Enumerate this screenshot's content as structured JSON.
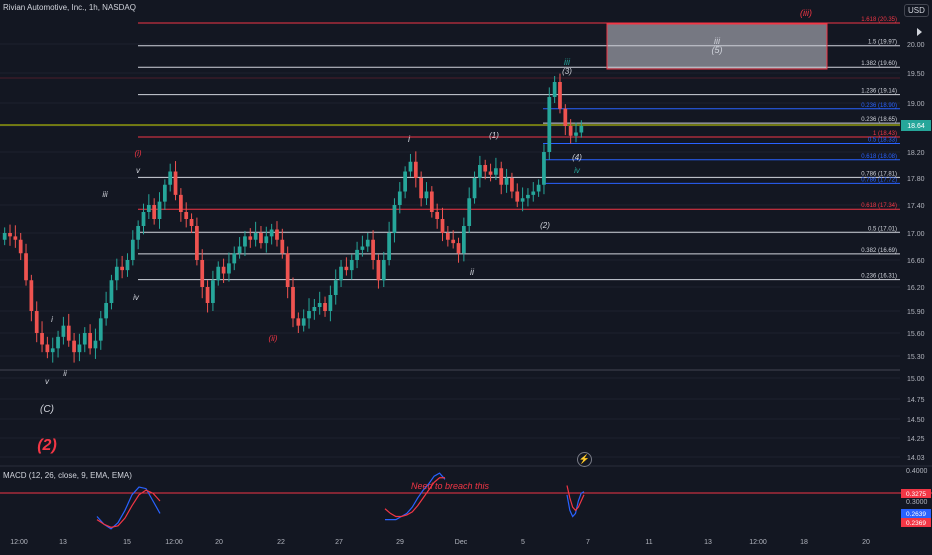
{
  "header": {
    "symbol_title": "Rivian Automotive, Inc., 1h, NASDAQ",
    "currency": "USD"
  },
  "colors": {
    "background": "#131722",
    "up": "#26a69a",
    "down": "#ef5350",
    "white_line": "#d1d4dc",
    "red_line": "#f23645",
    "blue_line": "#2962ff",
    "yellow_line": "#c8d400",
    "teal_label": "#26a69a",
    "grid": "#1e222d"
  },
  "chart_data": [
    {
      "type": "candlestick",
      "title": "",
      "price_axis": {
        "ticks": [
          "20.00",
          "19.50",
          "19.00",
          "18.60",
          "18.20",
          "17.80",
          "17.40",
          "17.00",
          "16.60",
          "16.20",
          "15.90",
          "15.60",
          "15.30",
          "15.00",
          "14.75",
          "14.50",
          "14.25",
          "14.03"
        ]
      },
      "time_axis": {
        "ticks": [
          "12:00",
          "13",
          "15",
          "12:00",
          "20",
          "22",
          "27",
          "29",
          "Dec",
          "5",
          "7",
          "11",
          "13",
          "12:00",
          "18",
          "20"
        ]
      },
      "last_price": "18.64",
      "fib_levels": [
        {
          "label": "1.618 (20.35)",
          "value": 20.35,
          "color": "#f23645"
        },
        {
          "label": "1.5 (19.97)",
          "value": 19.97,
          "color": "#d1d4dc"
        },
        {
          "label": "1.382 (19.60)",
          "value": 19.6,
          "color": "#d1d4dc"
        },
        {
          "label": "1.236 (19.14)",
          "value": 19.14,
          "color": "#d1d4dc"
        },
        {
          "label": "0.236 (18.90)",
          "value": 18.9,
          "color": "#2962ff"
        },
        {
          "label": "0.236 (18.65)",
          "value": 18.65,
          "color": "#d1d4dc"
        },
        {
          "label": "1 (18.43)",
          "value": 18.43,
          "color": "#f23645"
        },
        {
          "label": "0.5 (18.33)",
          "value": 18.33,
          "color": "#2962ff"
        },
        {
          "label": "0.618 (18.08)",
          "value": 18.08,
          "color": "#2962ff"
        },
        {
          "label": "0.786 (17.81)",
          "value": 17.81,
          "color": "#d1d4dc"
        },
        {
          "label": "0.786 (17.72)",
          "value": 17.72,
          "color": "#2962ff"
        },
        {
          "label": "0.618 (17.34)",
          "value": 17.34,
          "color": "#f23645"
        },
        {
          "label": "0.5 (17.01)",
          "value": 17.01,
          "color": "#d1d4dc"
        },
        {
          "label": "0.382 (16.69)",
          "value": 16.69,
          "color": "#d1d4dc"
        },
        {
          "label": "0.236 (16.31)",
          "value": 16.31,
          "color": "#d1d4dc"
        }
      ],
      "wave_labels": [
        {
          "text": "(iii)",
          "color": "#f23645"
        },
        {
          "text": "iii",
          "color": "#d1d4dc"
        },
        {
          "text": "(5)",
          "color": "#d1d4dc"
        },
        {
          "text": "iii",
          "color": "#26a69a"
        },
        {
          "text": "(3)",
          "color": "#d1d4dc"
        },
        {
          "text": "i",
          "color": "#d1d4dc"
        },
        {
          "text": "(1)",
          "color": "#d1d4dc"
        },
        {
          "text": "(i)",
          "color": "#f23645"
        },
        {
          "text": "v",
          "color": "#d1d4dc"
        },
        {
          "text": "iii",
          "color": "#d1d4dc"
        },
        {
          "text": "(4)",
          "color": "#d1d4dc"
        },
        {
          "text": "iv",
          "color": "#26a69a"
        },
        {
          "text": "(2)",
          "color": "#d1d4dc"
        },
        {
          "text": "iv",
          "color": "#d1d4dc"
        },
        {
          "text": "ii",
          "color": "#d1d4dc"
        },
        {
          "text": "(ii)",
          "color": "#f23645"
        },
        {
          "text": "i",
          "color": "#d1d4dc"
        },
        {
          "text": "ii",
          "color": "#d1d4dc"
        },
        {
          "text": "v",
          "color": "#d1d4dc"
        },
        {
          "text": "(C)",
          "color": "#d1d4dc"
        },
        {
          "text": "(2)",
          "color": "#f23645"
        }
      ],
      "candles_close": [
        17.0,
        16.95,
        16.9,
        16.7,
        16.3,
        15.9,
        15.6,
        15.45,
        15.35,
        15.4,
        15.55,
        15.7,
        15.5,
        15.35,
        15.45,
        15.6,
        15.4,
        15.5,
        15.8,
        16.0,
        16.3,
        16.5,
        16.45,
        16.6,
        16.9,
        17.1,
        17.3,
        17.4,
        17.2,
        17.45,
        17.7,
        17.9,
        17.55,
        17.3,
        17.2,
        17.1,
        16.6,
        16.2,
        16.0,
        16.3,
        16.5,
        16.4,
        16.55,
        16.7,
        16.8,
        16.95,
        16.9,
        17.0,
        16.85,
        16.95,
        17.05,
        16.9,
        16.7,
        16.2,
        15.8,
        15.7,
        15.8,
        15.9,
        15.95,
        16.0,
        15.9,
        16.1,
        16.3,
        16.5,
        16.45,
        16.6,
        16.75,
        16.8,
        16.9,
        16.6,
        16.3,
        16.6,
        17.0,
        17.4,
        17.6,
        17.9,
        18.05,
        17.8,
        17.5,
        17.6,
        17.3,
        17.2,
        17.0,
        16.9,
        16.85,
        16.7,
        17.1,
        17.5,
        17.8,
        18.0,
        17.9,
        17.85,
        17.95,
        17.7,
        17.8,
        17.6,
        17.45,
        17.5,
        17.55,
        17.6,
        17.7,
        18.2,
        19.1,
        19.35,
        18.9,
        18.6,
        18.45,
        18.5,
        18.6
      ]
    },
    {
      "type": "line",
      "title": "MACD (12, 26, close, 9, EMA, EMA)",
      "annotation": "Need to breach this",
      "price_axis": {
        "ticks": [
          "0.4000",
          "0.3000"
        ]
      },
      "badges": [
        {
          "text": "0.3275",
          "color": "#f23645"
        },
        {
          "text": "0.2639",
          "color": "#2962ff"
        },
        {
          "text": "0.2369",
          "color": "#f23645"
        }
      ],
      "series": [
        {
          "values": [
            0.1,
            0.05,
            0.02,
            0.06,
            0.14,
            0.24,
            0.29,
            0.28,
            0.2,
            0.12,
            0.08,
            0.08,
            0.08,
            0.1,
            0.12,
            0.16,
            0.22,
            0.27,
            0.31,
            0.36,
            0.38,
            0.34,
            0.24,
            0.14,
            0.1,
            0.12,
            0.2,
            0.25,
            0.26
          ]
        },
        {
          "values": [
            0.08,
            0.05,
            0.03,
            0.04,
            0.09,
            0.17,
            0.24,
            0.27,
            0.25,
            0.2,
            0.15,
            0.12,
            0.1,
            0.1,
            0.11,
            0.13,
            0.17,
            0.22,
            0.27,
            0.32,
            0.35,
            0.35,
            0.3,
            0.22,
            0.16,
            0.14,
            0.16,
            0.2,
            0.24
          ]
        }
      ]
    }
  ]
}
